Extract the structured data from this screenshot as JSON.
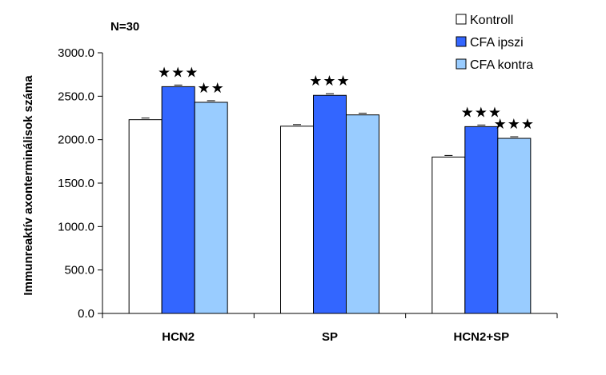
{
  "chart_data": {
    "type": "bar",
    "note": "N=30",
    "ylabel": "Immunreaktív axonterminálisok száma",
    "xlabel": "",
    "ylim": [
      0,
      3000
    ],
    "yticks": [
      0,
      500,
      1000,
      1500,
      2000,
      2500,
      3000
    ],
    "ytick_labels": [
      "0.0",
      "500.0",
      "1000.0",
      "1500.0",
      "2000.0",
      "2500.0",
      "3000.0"
    ],
    "categories": [
      "HCN2",
      "SP",
      "HCN2+SP"
    ],
    "series": [
      {
        "name": "Kontroll",
        "color": "#ffffff",
        "values": [
          2230,
          2155,
          1800
        ]
      },
      {
        "name": "CFA ipszi",
        "color": "#3366ff",
        "values": [
          2610,
          2510,
          2150
        ]
      },
      {
        "name": "CFA kontra",
        "color": "#99ccff",
        "values": [
          2430,
          2285,
          2015
        ]
      }
    ],
    "significance": [
      [
        "",
        "★★★",
        "★★"
      ],
      [
        "",
        "★★★",
        ""
      ],
      [
        "",
        "★★★",
        "★★★"
      ]
    ],
    "legend_position": "top-right",
    "grid": false
  }
}
